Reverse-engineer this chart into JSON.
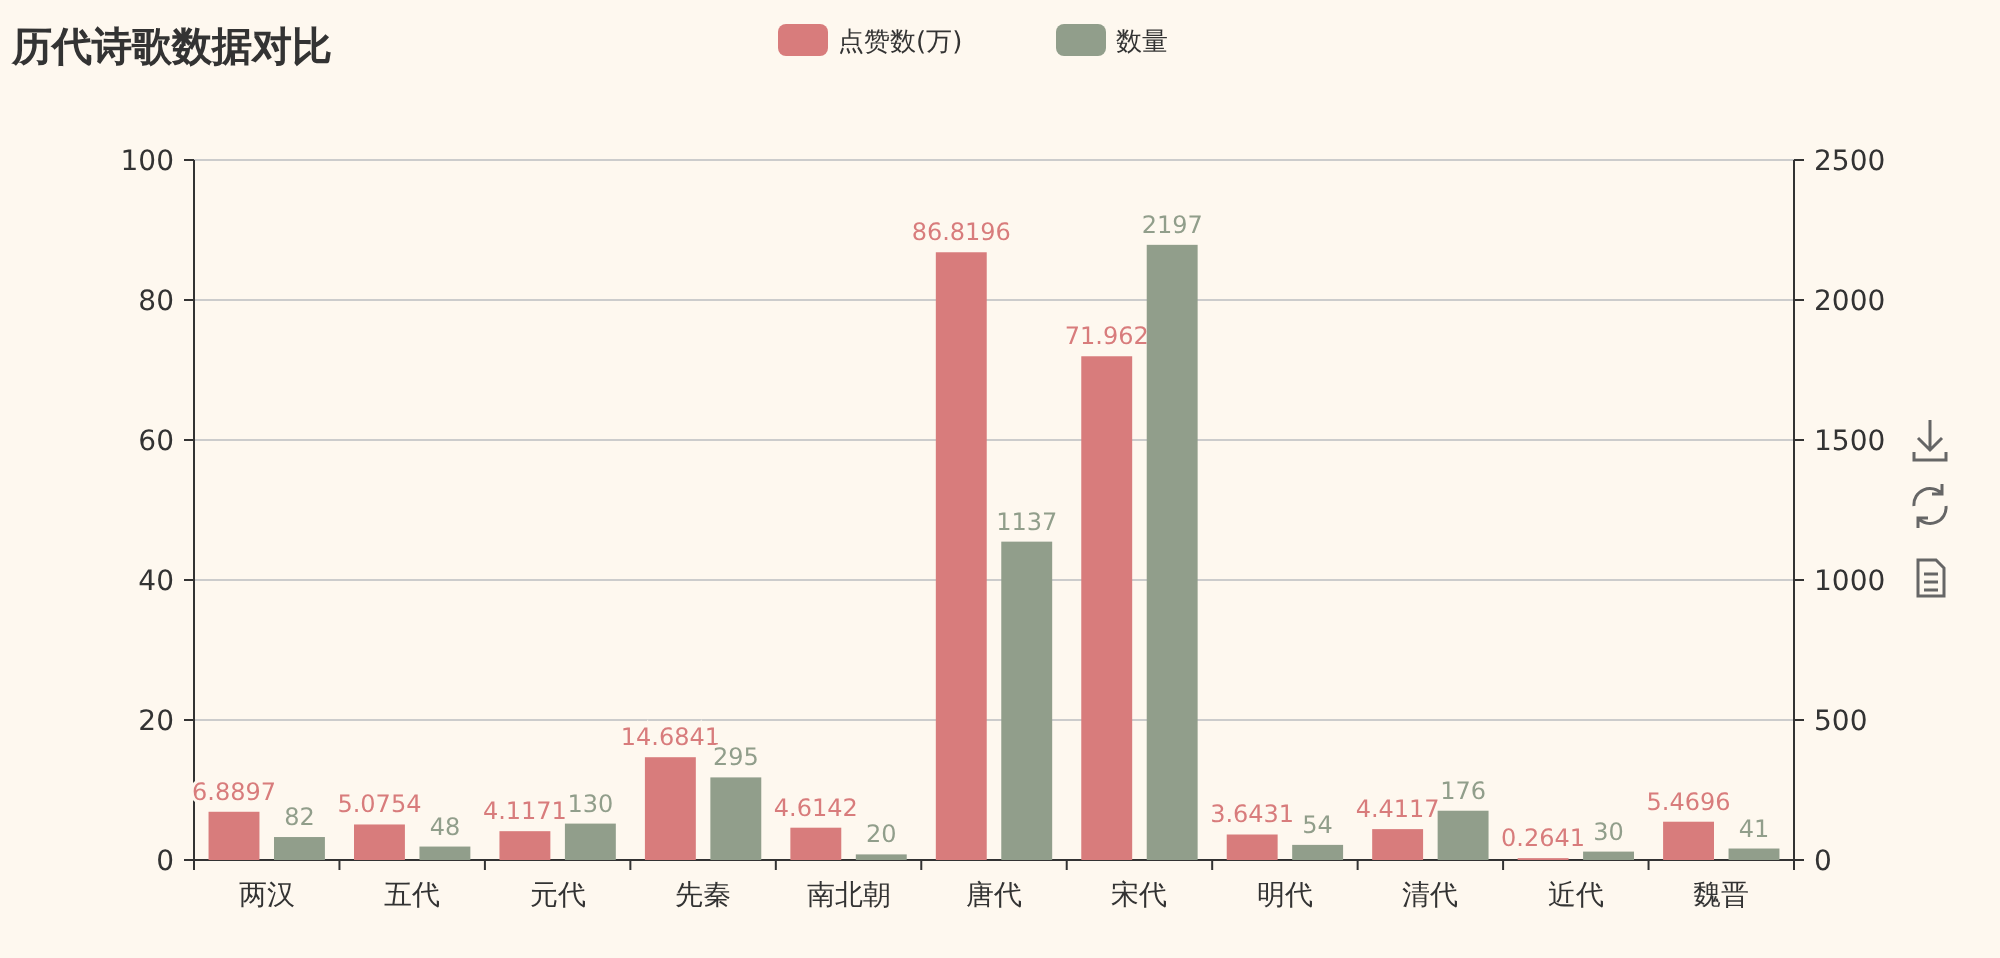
{
  "chart_data": {
    "type": "bar",
    "title": "历代诗歌数据对比",
    "categories": [
      "两汉",
      "五代",
      "元代",
      "先秦",
      "南北朝",
      "唐代",
      "宋代",
      "明代",
      "清代",
      "近代",
      "魏晋"
    ],
    "series": [
      {
        "name": "点赞数(万)",
        "color": "#d87c7c",
        "values": [
          6.8897,
          5.0754,
          4.1171,
          14.6841,
          4.6142,
          86.8196,
          71.962,
          3.6431,
          4.4117,
          0.2641,
          5.4696
        ]
      },
      {
        "name": "数量",
        "color": "#919e8b",
        "axis": "y2",
        "values": [
          82,
          48,
          130,
          295,
          20,
          1137,
          2197,
          54,
          176,
          30,
          41
        ]
      }
    ],
    "ylim": [
      0,
      100
    ],
    "yticks": [
      0,
      20,
      40,
      60,
      80,
      100
    ],
    "y2lim": [
      0,
      2500
    ],
    "y2ticks": [
      0,
      500,
      1000,
      1500,
      2000,
      2500
    ],
    "grid": "y",
    "legend": "top",
    "data_labels": true
  }
}
